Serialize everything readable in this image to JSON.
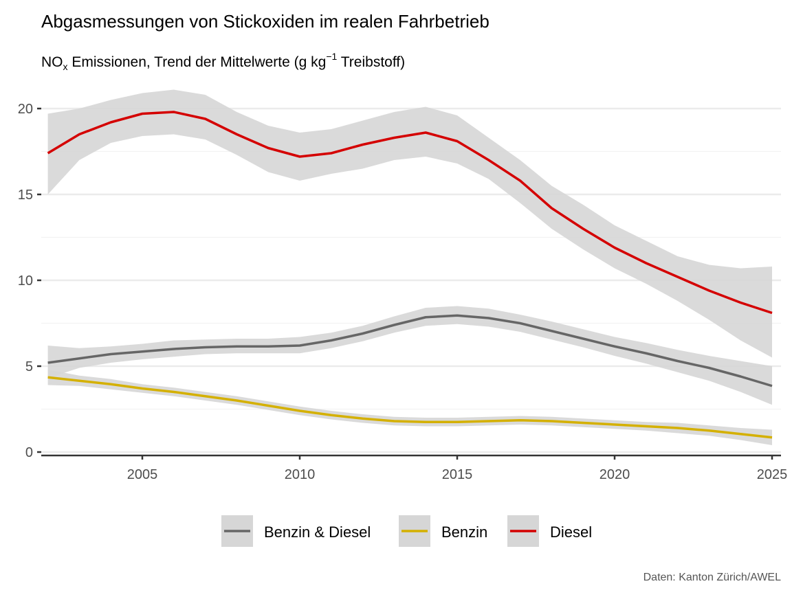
{
  "chart_data": {
    "type": "line",
    "title": "Abgasmessungen von Stickoxiden im realen Fahrbetrieb",
    "subtitle": {
      "base": "NO",
      "sub": "x",
      "mid": " Emissionen, Trend der Mittelwerte (g kg",
      "sup": "−1",
      "end": " Treibstoff)"
    },
    "caption": "Daten: Kanton Zürich/AWEL",
    "xlabel": "",
    "ylabel": "",
    "xlim": [
      2001.7,
      2025.3
    ],
    "ylim": [
      -0.2,
      21.5
    ],
    "xticks": [
      2005,
      2010,
      2015,
      2020,
      2025
    ],
    "yticks": [
      0,
      5,
      10,
      15,
      20
    ],
    "grid": true,
    "legend_position": "bottom",
    "x": [
      2002,
      2003,
      2004,
      2005,
      2006,
      2007,
      2008,
      2009,
      2010,
      2011,
      2012,
      2013,
      2014,
      2015,
      2016,
      2017,
      2018,
      2019,
      2020,
      2021,
      2022,
      2023,
      2024,
      2025
    ],
    "series": [
      {
        "name": "Benzin & Diesel",
        "color": "#666666",
        "values": [
          5.2,
          5.45,
          5.7,
          5.85,
          6.0,
          6.1,
          6.15,
          6.15,
          6.2,
          6.5,
          6.9,
          7.4,
          7.85,
          7.95,
          7.8,
          7.5,
          7.05,
          6.6,
          6.15,
          5.75,
          5.3,
          4.9,
          4.4,
          3.85
        ],
        "lower": [
          4.3,
          4.9,
          5.2,
          5.4,
          5.55,
          5.7,
          5.75,
          5.75,
          5.75,
          6.05,
          6.45,
          6.95,
          7.35,
          7.45,
          7.3,
          7.0,
          6.55,
          6.1,
          5.6,
          5.15,
          4.65,
          4.15,
          3.5,
          2.75
        ],
        "upper": [
          6.2,
          6.05,
          6.15,
          6.3,
          6.5,
          6.55,
          6.6,
          6.6,
          6.7,
          6.95,
          7.35,
          7.9,
          8.4,
          8.5,
          8.35,
          8.0,
          7.6,
          7.15,
          6.7,
          6.35,
          5.95,
          5.6,
          5.3,
          5.0
        ]
      },
      {
        "name": "Benzin",
        "color": "#d4b000",
        "values": [
          4.35,
          4.15,
          3.95,
          3.7,
          3.5,
          3.25,
          3.0,
          2.7,
          2.4,
          2.15,
          1.95,
          1.8,
          1.75,
          1.75,
          1.8,
          1.85,
          1.8,
          1.7,
          1.6,
          1.5,
          1.4,
          1.25,
          1.05,
          0.85
        ],
        "lower": [
          3.9,
          3.85,
          3.65,
          3.45,
          3.25,
          3.0,
          2.75,
          2.45,
          2.15,
          1.9,
          1.7,
          1.55,
          1.5,
          1.5,
          1.55,
          1.6,
          1.55,
          1.45,
          1.35,
          1.25,
          1.1,
          0.95,
          0.7,
          0.4
        ],
        "upper": [
          4.8,
          4.45,
          4.25,
          3.95,
          3.75,
          3.5,
          3.25,
          2.95,
          2.65,
          2.4,
          2.2,
          2.05,
          2.0,
          2.0,
          2.05,
          2.1,
          2.05,
          1.95,
          1.85,
          1.75,
          1.7,
          1.55,
          1.4,
          1.3
        ]
      },
      {
        "name": "Diesel",
        "color": "#d40000",
        "values": [
          17.4,
          18.5,
          19.2,
          19.7,
          19.8,
          19.4,
          18.5,
          17.7,
          17.2,
          17.4,
          17.9,
          18.3,
          18.6,
          18.1,
          17.0,
          15.8,
          14.2,
          13.0,
          11.9,
          11.0,
          10.2,
          9.4,
          8.7,
          8.1
        ],
        "lower": [
          15.0,
          17.0,
          18.0,
          18.4,
          18.5,
          18.2,
          17.3,
          16.3,
          15.8,
          16.2,
          16.5,
          17.0,
          17.2,
          16.8,
          15.9,
          14.5,
          13.0,
          11.8,
          10.7,
          9.8,
          8.8,
          7.7,
          6.5,
          5.5
        ],
        "upper": [
          19.7,
          20.0,
          20.5,
          20.9,
          21.1,
          20.8,
          19.8,
          19.0,
          18.6,
          18.8,
          19.3,
          19.8,
          20.1,
          19.6,
          18.3,
          17.0,
          15.5,
          14.4,
          13.2,
          12.3,
          11.4,
          10.9,
          10.7,
          10.8
        ]
      }
    ],
    "band_color": "#d6d6d6"
  }
}
